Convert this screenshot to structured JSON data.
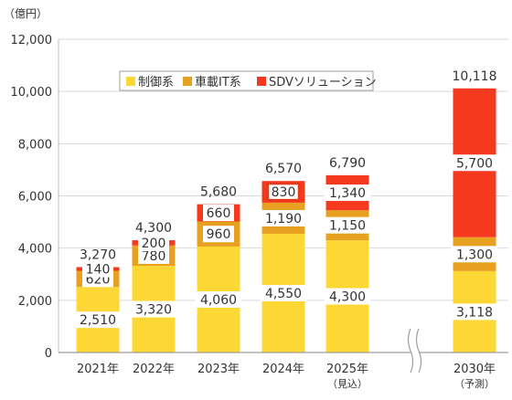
{
  "chart_data": {
    "type": "bar",
    "stacked": true,
    "unit": "（億円）",
    "ylim": [
      0,
      12000
    ],
    "yticks": [
      0,
      2000,
      4000,
      6000,
      8000,
      10000,
      12000
    ],
    "ytick_labels": [
      "0",
      "2,000",
      "4,000",
      "6,000",
      "8,000",
      "10,000",
      "12,000"
    ],
    "grid": true,
    "axis_break_between": [
      "2025年",
      "2030年"
    ],
    "legend_position": "top-center",
    "categories": [
      "2021年",
      "2022年",
      "2023年",
      "2024年",
      "2025年",
      "2030年"
    ],
    "category_notes": [
      "",
      "",
      "",
      "",
      "（見込）",
      "（予測）"
    ],
    "series": [
      {
        "name": "制御系",
        "color": "#FDD835",
        "values": [
          2510,
          3320,
          4060,
          4550,
          4300,
          3118
        ],
        "labels": [
          "2,510",
          "3,320",
          "4,060",
          "4,550",
          "4,300",
          "3,118"
        ]
      },
      {
        "name": "車載IT系",
        "color": "#E8A020",
        "values": [
          620,
          780,
          960,
          1190,
          1150,
          1300
        ],
        "labels": [
          "620",
          "780",
          "960",
          "1,190",
          "1,150",
          "1,300"
        ]
      },
      {
        "name": "SDVソリューション",
        "color": "#F4391E",
        "values": [
          140,
          200,
          660,
          830,
          1340,
          5700
        ],
        "labels": [
          "140",
          "200",
          "660",
          "830",
          "1,340",
          "5,700"
        ]
      }
    ],
    "totals": [
      3270,
      4300,
      5680,
      6570,
      6790,
      10118
    ],
    "total_labels": [
      "3,270",
      "4,300",
      "5,680",
      "6,570",
      "6,790",
      "10,118"
    ],
    "highlighted": [
      {
        "category": "2024年",
        "series": "SDVソリューション"
      }
    ]
  }
}
